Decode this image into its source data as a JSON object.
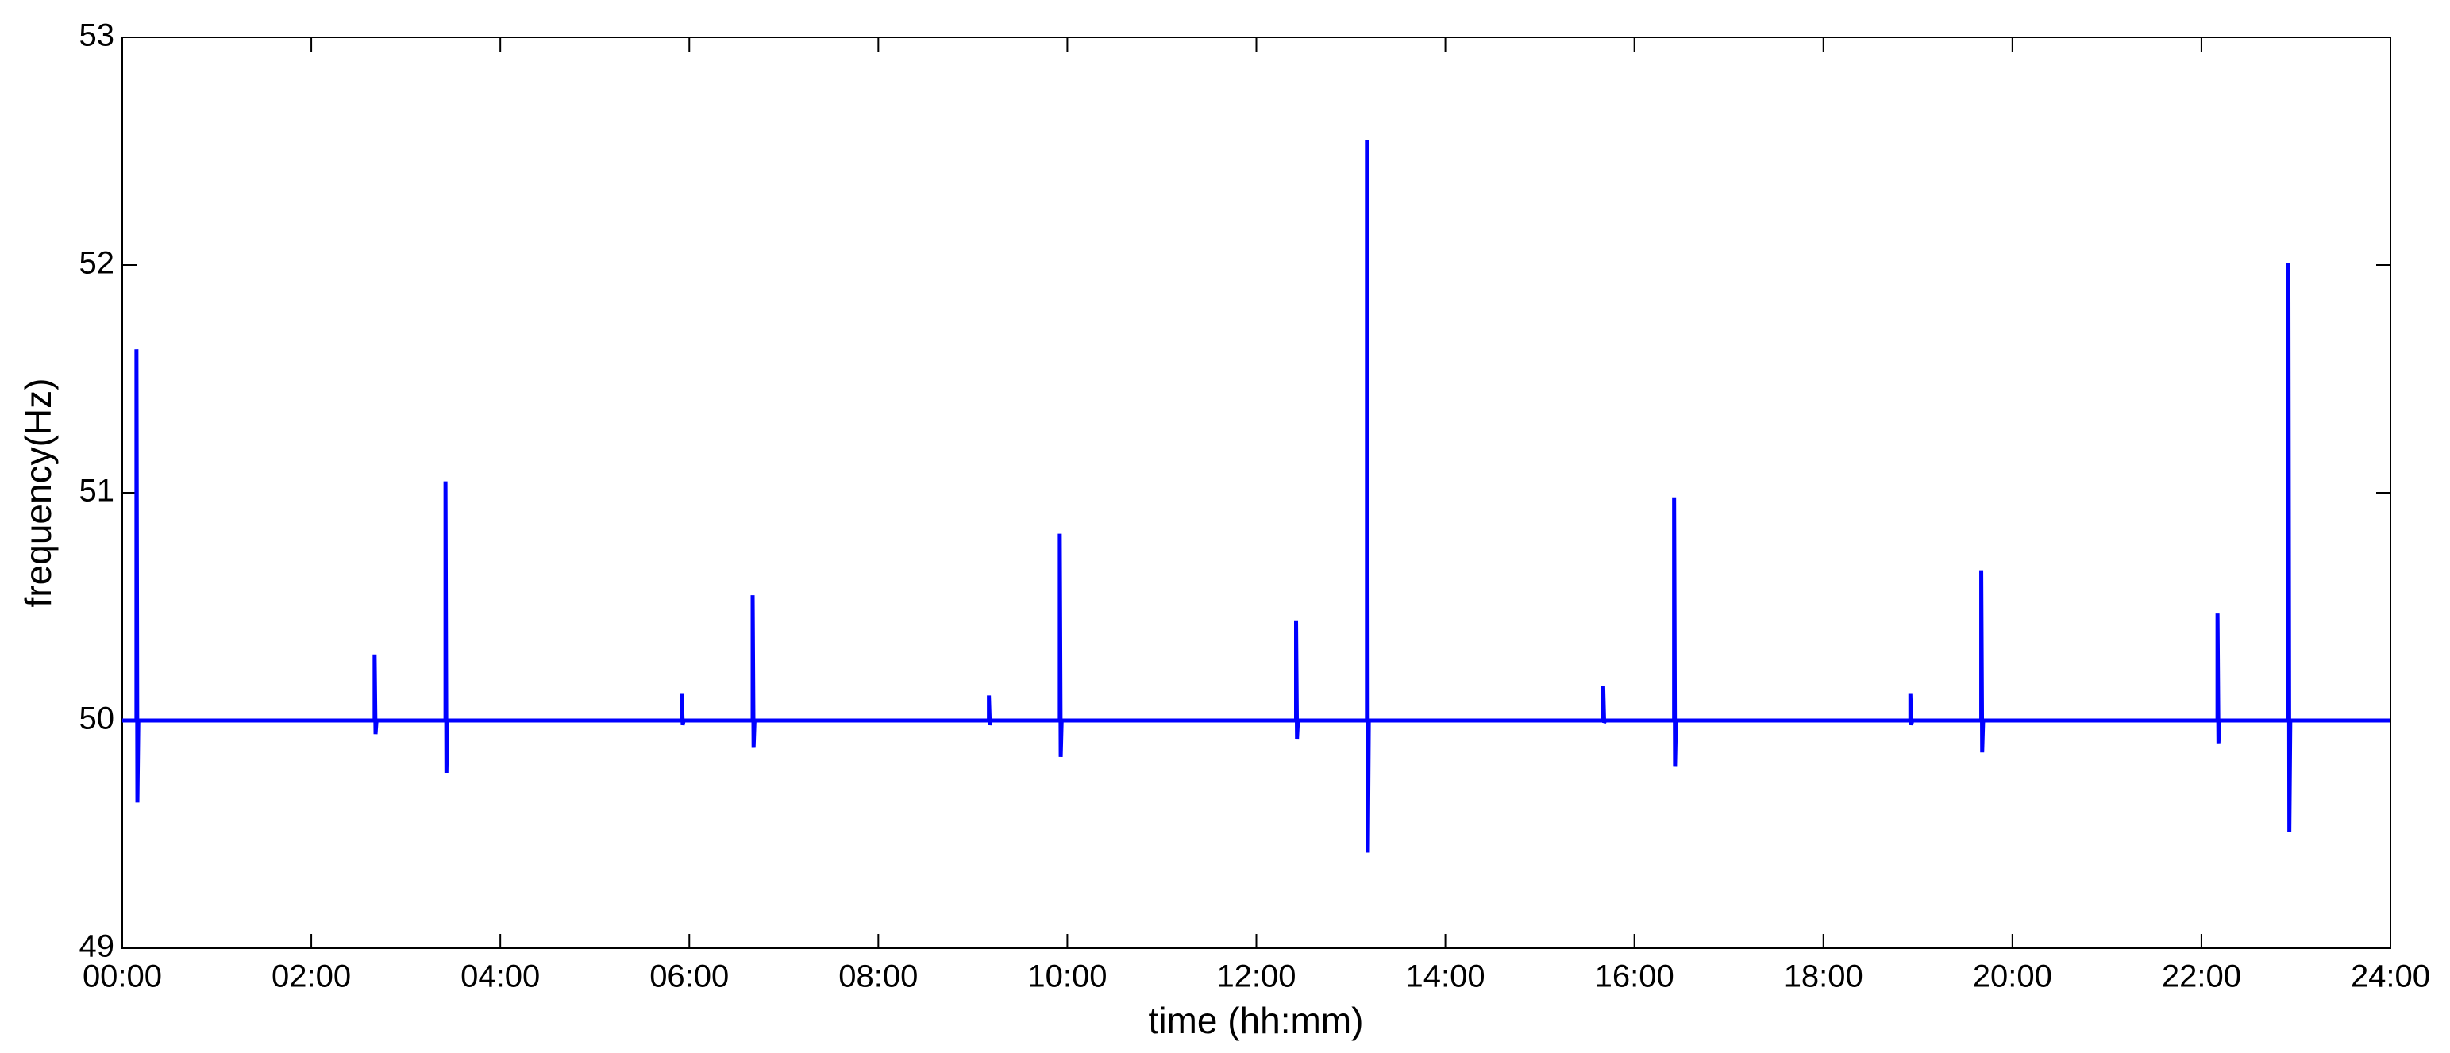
{
  "chart_data": {
    "type": "line",
    "xlabel": "time (hh:mm)",
    "ylabel": "frequency(Hz)",
    "x": [
      0,
      0.15,
      0.15,
      0.16,
      0.17,
      2.67,
      2.67,
      2.68,
      2.69,
      3.42,
      3.42,
      3.43,
      3.44,
      5.92,
      5.92,
      5.93,
      5.94,
      6.67,
      6.67,
      6.68,
      6.69,
      9.17,
      9.17,
      9.18,
      9.19,
      9.92,
      9.92,
      9.93,
      9.94,
      12.42,
      12.42,
      12.43,
      12.44,
      13.17,
      13.17,
      13.18,
      13.19,
      15.67,
      15.67,
      15.68,
      15.69,
      16.42,
      16.42,
      16.43,
      16.44,
      18.92,
      18.92,
      18.93,
      18.94,
      19.67,
      19.67,
      19.68,
      19.69,
      22.17,
      22.17,
      22.18,
      22.19,
      22.92,
      22.92,
      22.93,
      22.94,
      24
    ],
    "series": [
      {
        "color": "#0000ff",
        "values": [
          50,
          50,
          51.63,
          49.64,
          50,
          50,
          50.29,
          49.94,
          50,
          50,
          51.05,
          49.77,
          50,
          50,
          50.12,
          49.98,
          50,
          50,
          50.55,
          49.88,
          50,
          50,
          50.11,
          49.98,
          50,
          50,
          50.82,
          49.84,
          50,
          50,
          50.44,
          49.92,
          50,
          50,
          52.55,
          49.42,
          50,
          50,
          50.15,
          49.99,
          50,
          50,
          50.98,
          49.8,
          50,
          50,
          50.12,
          49.98,
          50,
          50,
          50.66,
          49.86,
          50,
          50,
          50.47,
          49.9,
          50,
          50,
          52.01,
          49.51,
          50,
          50
        ]
      }
    ],
    "xlim": [
      0,
      24
    ],
    "xticks": [
      {
        "value": 0,
        "label": "00:00"
      },
      {
        "value": 2,
        "label": "02:00"
      },
      {
        "value": 4,
        "label": "04:00"
      },
      {
        "value": 6,
        "label": "06:00"
      },
      {
        "value": 8,
        "label": "08:00"
      },
      {
        "value": 10,
        "label": "10:00"
      },
      {
        "value": 12,
        "label": "12:00"
      },
      {
        "value": 14,
        "label": "14:00"
      },
      {
        "value": 16,
        "label": "16:00"
      },
      {
        "value": 18,
        "label": "18:00"
      },
      {
        "value": 20,
        "label": "20:00"
      },
      {
        "value": 22,
        "label": "22:00"
      },
      {
        "value": 24,
        "label": "24:00"
      }
    ],
    "ylim": [
      49,
      53
    ],
    "yticks": [
      49,
      50,
      51,
      52,
      53
    ],
    "grid": false
  }
}
